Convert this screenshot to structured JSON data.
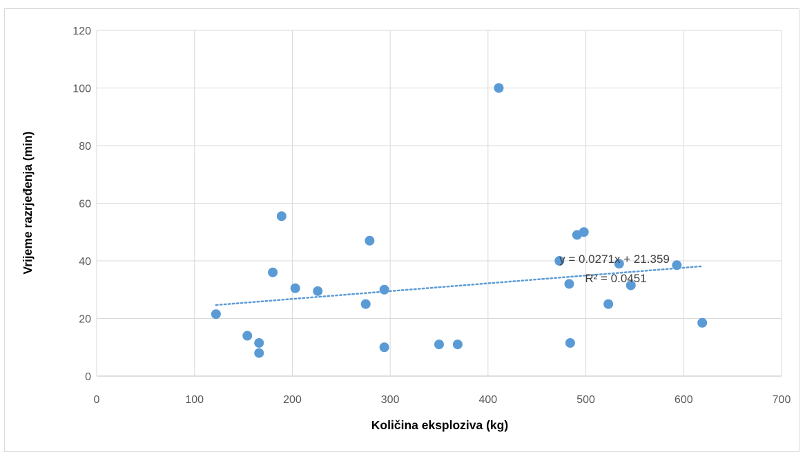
{
  "chart_data": {
    "type": "scatter",
    "xlabel": "Količina eksploziva (kg)",
    "ylabel": "Vrijeme razrjeđenja (min)",
    "xlim": [
      0,
      700
    ],
    "ylim": [
      0,
      120
    ],
    "x_ticks": [
      0,
      100,
      200,
      300,
      400,
      500,
      600,
      700
    ],
    "y_ticks": [
      0,
      20,
      40,
      60,
      80,
      100,
      120
    ],
    "grid": true,
    "legend": "none",
    "marker_color": "#5b9bd5",
    "points": [
      {
        "x": 122,
        "y": 21.5
      },
      {
        "x": 154,
        "y": 14
      },
      {
        "x": 166,
        "y": 11.5
      },
      {
        "x": 166,
        "y": 8
      },
      {
        "x": 180,
        "y": 36
      },
      {
        "x": 189,
        "y": 55.5
      },
      {
        "x": 203,
        "y": 30.5
      },
      {
        "x": 226,
        "y": 29.5
      },
      {
        "x": 275,
        "y": 25
      },
      {
        "x": 279,
        "y": 47
      },
      {
        "x": 294,
        "y": 10
      },
      {
        "x": 294,
        "y": 30
      },
      {
        "x": 350,
        "y": 11
      },
      {
        "x": 369,
        "y": 11
      },
      {
        "x": 411,
        "y": 100
      },
      {
        "x": 473,
        "y": 40
      },
      {
        "x": 483,
        "y": 32
      },
      {
        "x": 484,
        "y": 11.5
      },
      {
        "x": 491,
        "y": 49
      },
      {
        "x": 498,
        "y": 50
      },
      {
        "x": 523,
        "y": 25
      },
      {
        "x": 534,
        "y": 39
      },
      {
        "x": 546,
        "y": 31.5
      },
      {
        "x": 593,
        "y": 38.5
      },
      {
        "x": 619,
        "y": 18.5
      }
    ],
    "trendline": {
      "type": "linear",
      "slope": 0.0271,
      "intercept": 21.359,
      "x_range": [
        122,
        619
      ],
      "equation": "y = 0.0271x + 21.359",
      "r_squared": "R² = 0.0451",
      "color": "#5b9bd5",
      "style": "dotted"
    }
  }
}
